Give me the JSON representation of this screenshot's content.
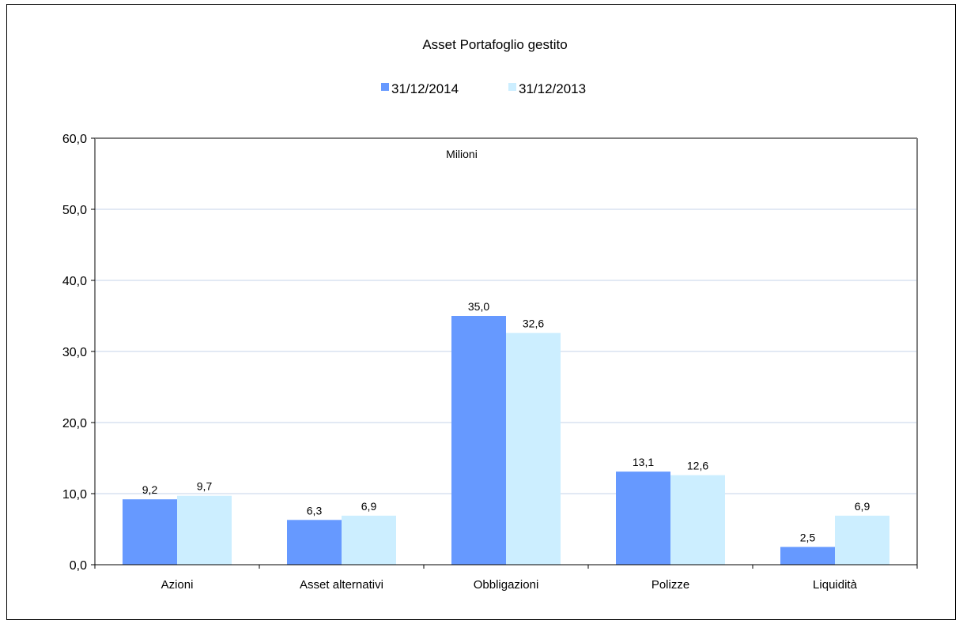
{
  "chart_data": {
    "type": "bar",
    "title": "Asset  Portafoglio gestito",
    "annotation": "Milioni",
    "categories": [
      "Azioni",
      "Asset alternativi",
      "Obbligazioni",
      "Polizze",
      "Liquidità"
    ],
    "series": [
      {
        "name": "31/12/2014",
        "color": "#6699ff",
        "values": [
          9.2,
          6.3,
          35.0,
          13.1,
          2.5
        ],
        "labels": [
          "9,2",
          "6,3",
          "35,0",
          "13,1",
          "2,5"
        ]
      },
      {
        "name": "31/12/2013",
        "color": "#cceeff",
        "values": [
          9.7,
          6.9,
          32.6,
          12.6,
          6.9
        ],
        "labels": [
          "9,7",
          "6,9",
          "32,6",
          "12,6",
          "6,9"
        ]
      }
    ],
    "ylim": [
      0,
      60
    ],
    "yticks": [
      0,
      10,
      20,
      30,
      40,
      50,
      60
    ],
    "ytick_labels": [
      "0,0",
      "10,0",
      "20,0",
      "30,0",
      "40,0",
      "50,0",
      "60,0"
    ],
    "grid": true,
    "gridline_color": "#c5d3e8",
    "legend_position": "top"
  }
}
